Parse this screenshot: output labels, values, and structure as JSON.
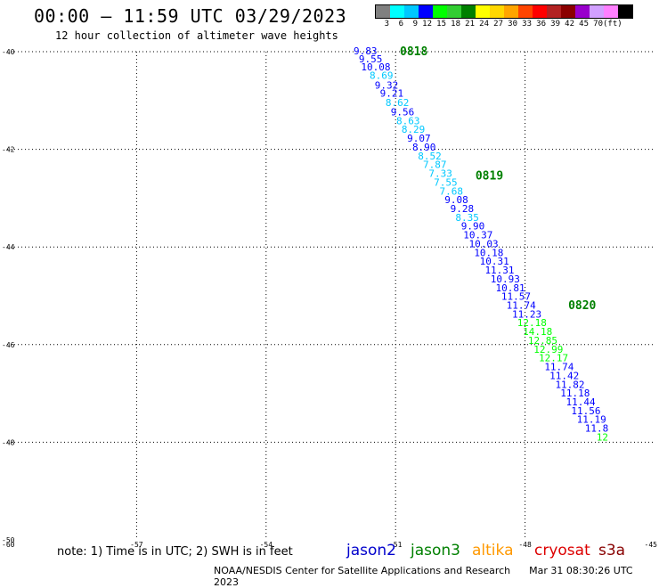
{
  "header": {
    "title": "00:00 – 11:59 UTC 03/29/2023",
    "subtitle": "12 hour collection of altimeter wave heights"
  },
  "color_scale": {
    "labels": [
      "3",
      "6",
      "9",
      "12",
      "15",
      "18",
      "21",
      "24",
      "27",
      "30",
      "33",
      "36",
      "39",
      "42",
      "45",
      "70",
      "(ft)"
    ],
    "colors": [
      "#808080",
      "#00ffff",
      "#00c8ff",
      "#0000ff",
      "#00ff00",
      "#32cd32",
      "#008000",
      "#ffff00",
      "#ffd700",
      "#ffa500",
      "#ff4500",
      "#ff0000",
      "#b22222",
      "#8b0000",
      "#9900cc",
      "#d2a0ff",
      "#ff80ff",
      "#000000"
    ]
  },
  "axes": {
    "lat_ticks": [
      -40,
      -42,
      -44,
      -46,
      -48,
      -50
    ],
    "lon_ticks": [
      -60,
      -57,
      -54,
      -51,
      -48,
      -45
    ]
  },
  "axis_labels": {
    "lat": [
      "-40",
      "-42",
      "-44",
      "-46",
      "-48",
      "-50"
    ],
    "lon": [
      "-60",
      "-57",
      "-54",
      "-51",
      "-48",
      "-45"
    ]
  },
  "time_labels": [
    {
      "text": "0818",
      "lat": -40.0,
      "lon": -50.9,
      "color": "#008000"
    },
    {
      "text": "0819",
      "lat": -42.55,
      "lon": -49.15,
      "color": "#008000"
    },
    {
      "text": "0820",
      "lat": -45.2,
      "lon": -47.0,
      "color": "#008000"
    }
  ],
  "track": [
    {
      "v": "9.83",
      "lat": -40.0,
      "lon": -51.7,
      "c": "#0000ff"
    },
    {
      "v": "9.55",
      "lat": -40.16,
      "lon": -51.58,
      "c": "#0000ff"
    },
    {
      "v": "10.08",
      "lat": -40.33,
      "lon": -51.46,
      "c": "#0000ff"
    },
    {
      "v": "8.69",
      "lat": -40.5,
      "lon": -51.33,
      "c": "#00c8ff"
    },
    {
      "v": "9.32",
      "lat": -40.7,
      "lon": -51.21,
      "c": "#0000ff"
    },
    {
      "v": "9.21",
      "lat": -40.87,
      "lon": -51.09,
      "c": "#0000ff"
    },
    {
      "v": "8.62",
      "lat": -41.06,
      "lon": -50.96,
      "c": "#00c8ff"
    },
    {
      "v": "9.56",
      "lat": -41.25,
      "lon": -50.84,
      "c": "#0000ff"
    },
    {
      "v": "8.63",
      "lat": -41.43,
      "lon": -50.71,
      "c": "#00c8ff"
    },
    {
      "v": "8.29",
      "lat": -41.61,
      "lon": -50.59,
      "c": "#00c8ff"
    },
    {
      "v": "9.07",
      "lat": -41.79,
      "lon": -50.46,
      "c": "#0000ff"
    },
    {
      "v": "8.90",
      "lat": -41.97,
      "lon": -50.34,
      "c": "#0000ff"
    },
    {
      "v": "8.52",
      "lat": -42.15,
      "lon": -50.21,
      "c": "#00c8ff"
    },
    {
      "v": "7.87",
      "lat": -42.33,
      "lon": -50.09,
      "c": "#00c8ff"
    },
    {
      "v": "7.33",
      "lat": -42.51,
      "lon": -49.96,
      "c": "#00c8ff"
    },
    {
      "v": "7.55",
      "lat": -42.69,
      "lon": -49.84,
      "c": "#00c8ff"
    },
    {
      "v": "7.68",
      "lat": -42.87,
      "lon": -49.71,
      "c": "#00c8ff"
    },
    {
      "v": "9.08",
      "lat": -43.05,
      "lon": -49.59,
      "c": "#0000ff"
    },
    {
      "v": "9.28",
      "lat": -43.23,
      "lon": -49.46,
      "c": "#0000ff"
    },
    {
      "v": "8.35",
      "lat": -43.41,
      "lon": -49.34,
      "c": "#00c8ff"
    },
    {
      "v": "9.90",
      "lat": -43.59,
      "lon": -49.21,
      "c": "#0000ff"
    },
    {
      "v": "10.37",
      "lat": -43.77,
      "lon": -49.09,
      "c": "#0000ff"
    },
    {
      "v": "10.03",
      "lat": -43.95,
      "lon": -48.96,
      "c": "#0000ff"
    },
    {
      "v": "10.18",
      "lat": -44.13,
      "lon": -48.84,
      "c": "#0000ff"
    },
    {
      "v": "10.31",
      "lat": -44.31,
      "lon": -48.71,
      "c": "#0000ff"
    },
    {
      "v": "11.31",
      "lat": -44.49,
      "lon": -48.59,
      "c": "#0000ff"
    },
    {
      "v": "10.93",
      "lat": -44.67,
      "lon": -48.46,
      "c": "#0000ff"
    },
    {
      "v": "10.81",
      "lat": -44.85,
      "lon": -48.34,
      "c": "#0000ff"
    },
    {
      "v": "11.57",
      "lat": -45.03,
      "lon": -48.21,
      "c": "#0000ff"
    },
    {
      "v": "11.74",
      "lat": -45.21,
      "lon": -48.09,
      "c": "#0000ff"
    },
    {
      "v": "11.23",
      "lat": -45.39,
      "lon": -47.96,
      "c": "#0000ff"
    },
    {
      "v": "12.18",
      "lat": -45.57,
      "lon": -47.84,
      "c": "#00ff00"
    },
    {
      "v": "14.18",
      "lat": -45.75,
      "lon": -47.71,
      "c": "#00ff00"
    },
    {
      "v": "12.85",
      "lat": -45.93,
      "lon": -47.59,
      "c": "#00ff00"
    },
    {
      "v": "12.99",
      "lat": -46.11,
      "lon": -47.46,
      "c": "#00ff00"
    },
    {
      "v": "12.17",
      "lat": -46.29,
      "lon": -47.34,
      "c": "#00ff00"
    },
    {
      "v": "11.74",
      "lat": -46.47,
      "lon": -47.21,
      "c": "#0000ff"
    },
    {
      "v": "11.42",
      "lat": -46.65,
      "lon": -47.09,
      "c": "#0000ff"
    },
    {
      "v": "11.82",
      "lat": -46.83,
      "lon": -46.96,
      "c": "#0000ff"
    },
    {
      "v": "11.18",
      "lat": -47.01,
      "lon": -46.84,
      "c": "#0000ff"
    },
    {
      "v": "11.44",
      "lat": -47.19,
      "lon": -46.71,
      "c": "#0000ff"
    },
    {
      "v": "11.56",
      "lat": -47.37,
      "lon": -46.59,
      "c": "#0000ff"
    },
    {
      "v": "11.19",
      "lat": -47.55,
      "lon": -46.46,
      "c": "#0000ff"
    },
    {
      "v": "11.8",
      "lat": -47.73,
      "lon": -46.34,
      "c": "#0000ff"
    },
    {
      "v": "12",
      "lat": -47.91,
      "lon": -46.21,
      "c": "#00ff00"
    }
  ],
  "note": "note:  1) Time is in UTC;  2) SWH is in feet",
  "satellites": [
    {
      "name": "jason2",
      "color": "#0000cc"
    },
    {
      "name": "jason3",
      "color": "#008000"
    },
    {
      "name": "altika",
      "color": "#ff9900"
    },
    {
      "name": "cryosat",
      "color": "#dd0000"
    },
    {
      "name": "s3a",
      "color": "#880000"
    }
  ],
  "footer": {
    "credit": "NOAA/NESDIS Center for Satellite Applications and Research",
    "timestamp": "Mar 31 08:30:26 UTC 2023"
  }
}
